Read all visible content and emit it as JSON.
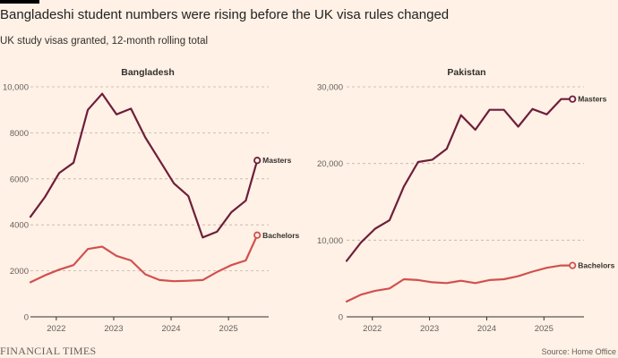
{
  "header": {
    "title": "Bangladeshi student numbers were rising before the UK visa rules changed",
    "subtitle": "UK study visas granted, 12-month rolling total"
  },
  "footer": {
    "logo": "FINANCIAL TIMES",
    "source": "Source: Home Office"
  },
  "colors": {
    "background": "#FFF1E5",
    "masters": "#6E1E3C",
    "bachelors": "#D2504F",
    "grid": "#BDB3AA",
    "axis": "#33302E"
  },
  "chart_data": [
    {
      "type": "line",
      "title": "Bangladesh",
      "xlim": [
        2021.55,
        2025.7
      ],
      "ylim": [
        0,
        10000
      ],
      "y_ticks": [
        0,
        2000,
        4000,
        6000,
        8000,
        10000
      ],
      "y_tick_labels": [
        "0",
        "2000",
        "4000",
        "6000",
        "8000",
        "10,000"
      ],
      "x_ticks": [
        2022,
        2023,
        2024,
        2025
      ],
      "x_tick_labels": [
        "2022",
        "2023",
        "2024",
        "2025"
      ],
      "series": [
        {
          "name": "Masters",
          "x": [
            2021.55,
            2021.8,
            2022.05,
            2022.3,
            2022.55,
            2022.8,
            2023.05,
            2023.3,
            2023.55,
            2023.8,
            2024.05,
            2024.3,
            2024.55,
            2024.8,
            2025.05,
            2025.3,
            2025.5
          ],
          "values": [
            4350,
            5200,
            6250,
            6700,
            9000,
            9700,
            8800,
            9050,
            7800,
            6800,
            5800,
            5250,
            3450,
            3700,
            4550,
            5050,
            6800
          ]
        },
        {
          "name": "Bachelors",
          "x": [
            2021.55,
            2021.8,
            2022.05,
            2022.3,
            2022.55,
            2022.8,
            2023.05,
            2023.3,
            2023.55,
            2023.8,
            2024.05,
            2024.3,
            2024.55,
            2024.8,
            2025.05,
            2025.3,
            2025.5
          ],
          "values": [
            1500,
            1800,
            2050,
            2250,
            2950,
            3050,
            2650,
            2450,
            1850,
            1600,
            1550,
            1570,
            1600,
            1950,
            2250,
            2450,
            3550
          ]
        }
      ]
    },
    {
      "type": "line",
      "title": "Pakistan",
      "xlim": [
        2021.55,
        2025.7
      ],
      "ylim": [
        0,
        30000
      ],
      "y_ticks": [
        0,
        10000,
        20000,
        30000
      ],
      "y_tick_labels": [
        "0",
        "10,000",
        "20,000",
        "30,000"
      ],
      "x_ticks": [
        2022,
        2023,
        2024,
        2025
      ],
      "x_tick_labels": [
        "2022",
        "2023",
        "2024",
        "2025"
      ],
      "series": [
        {
          "name": "Masters",
          "x": [
            2021.55,
            2021.8,
            2022.05,
            2022.3,
            2022.55,
            2022.8,
            2023.05,
            2023.3,
            2023.55,
            2023.8,
            2024.05,
            2024.3,
            2024.55,
            2024.8,
            2025.05,
            2025.3,
            2025.5
          ],
          "values": [
            7300,
            9700,
            11500,
            12600,
            17000,
            20200,
            20500,
            21900,
            26300,
            24400,
            27000,
            27000,
            24800,
            27100,
            26400,
            28400,
            28400
          ]
        },
        {
          "name": "Bachelors",
          "x": [
            2021.55,
            2021.8,
            2022.05,
            2022.3,
            2022.55,
            2022.8,
            2023.05,
            2023.3,
            2023.55,
            2023.8,
            2024.05,
            2024.3,
            2024.55,
            2024.8,
            2025.05,
            2025.3,
            2025.5
          ],
          "values": [
            2000,
            2900,
            3400,
            3700,
            4900,
            4800,
            4500,
            4400,
            4700,
            4400,
            4800,
            4900,
            5300,
            5900,
            6400,
            6700,
            6700
          ]
        }
      ]
    }
  ]
}
